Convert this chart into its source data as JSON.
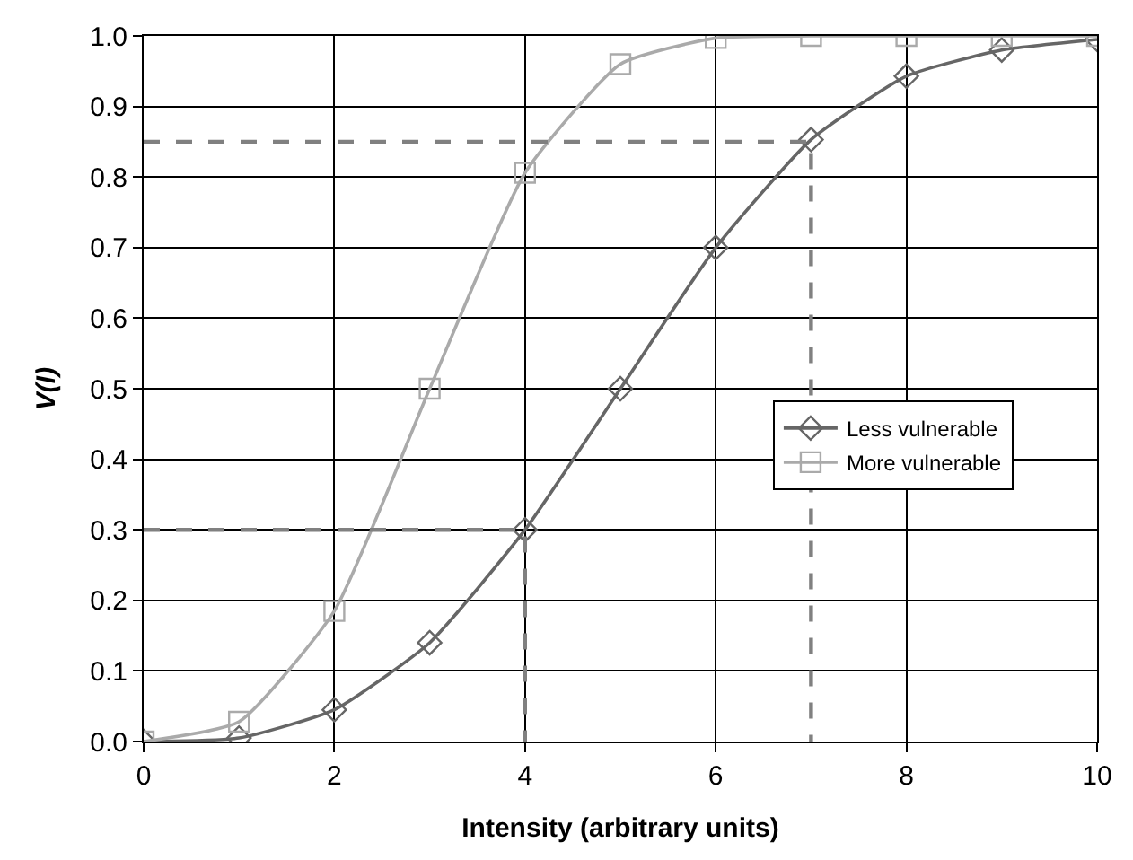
{
  "chart_data": {
    "type": "line",
    "xlabel": "Intensity (arbitrary units)",
    "ylabel": "V(I)",
    "x": [
      0,
      1,
      2,
      3,
      4,
      5,
      6,
      7,
      8,
      9,
      10
    ],
    "series": [
      {
        "name": "Less vulnerable",
        "color": "#666666",
        "marker": "diamond",
        "values": [
          0,
          0.005,
          0.045,
          0.14,
          0.3,
          0.5,
          0.7,
          0.853,
          0.943,
          0.98,
          0.995
        ]
      },
      {
        "name": "More vulnerable",
        "color": "#aaaaaa",
        "marker": "square",
        "values": [
          0,
          0.028,
          0.185,
          0.5,
          0.806,
          0.96,
          0.997,
          1.0,
          1.0,
          1.0,
          1.0
        ]
      },
      {
        "color": "#808080",
        "marker": "none",
        "line_style": "dashed",
        "x": [
          0,
          4,
          4
        ],
        "values": [
          0.3,
          0.3,
          0
        ]
      },
      {
        "color": "#808080",
        "marker": "none",
        "line_style": "dashed",
        "x": [
          0,
          7,
          7
        ],
        "values": [
          0.85,
          0.85,
          0
        ]
      }
    ],
    "xlim": [
      0,
      10
    ],
    "xticks": [
      0,
      2,
      4,
      6,
      8,
      10
    ],
    "ylim": [
      0,
      1
    ],
    "yticks": [
      {
        "value": 0,
        "label": "0.0"
      },
      {
        "value": 0.1,
        "label": "0.1"
      },
      {
        "value": 0.2,
        "label": "0.2"
      },
      {
        "value": 0.3,
        "label": "0.3"
      },
      {
        "value": 0.4,
        "label": "0.4"
      },
      {
        "value": 0.5,
        "label": "0.5"
      },
      {
        "value": 0.6,
        "label": "0.6"
      },
      {
        "value": 0.7,
        "label": "0.7"
      },
      {
        "value": 0.8,
        "label": "0.8"
      },
      {
        "value": 0.9,
        "label": "0.9"
      },
      {
        "value": 1,
        "label": "1.0"
      }
    ],
    "grid": true,
    "legend": "right"
  }
}
